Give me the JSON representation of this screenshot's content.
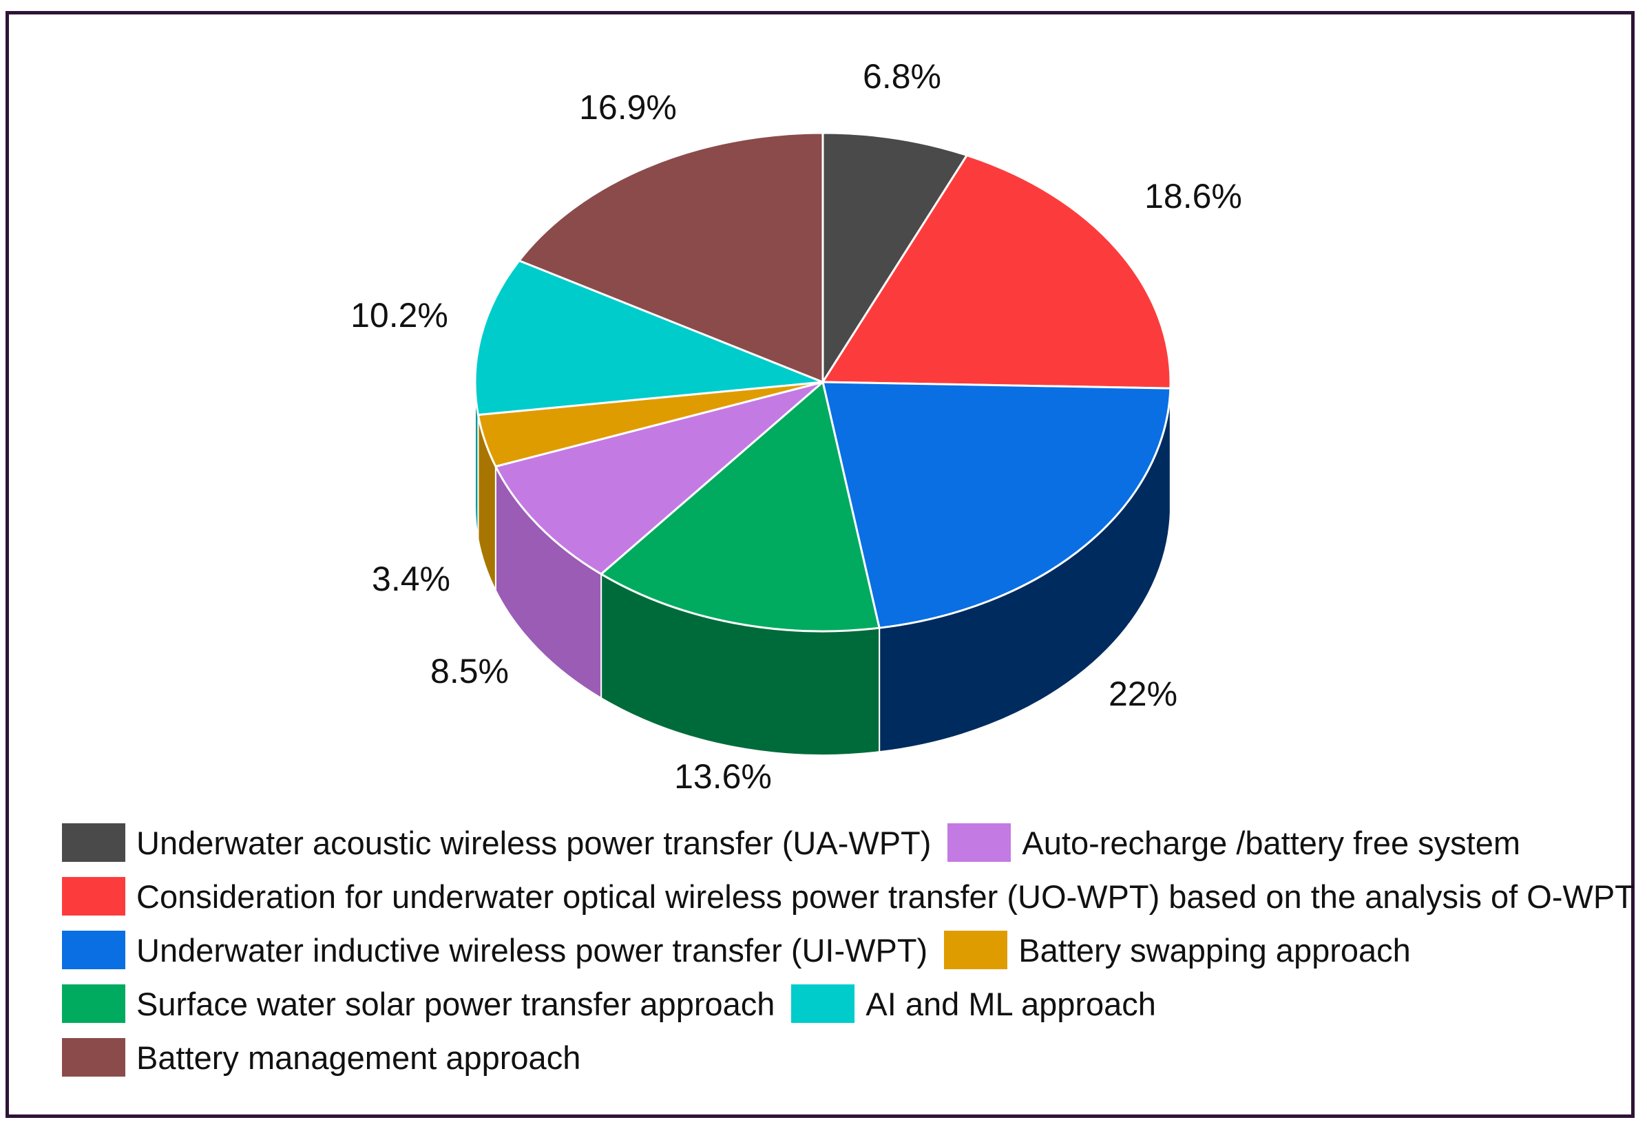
{
  "chart_data": {
    "type": "pie",
    "slices": [
      {
        "label": "Underwater acoustic wireless power transfer (UA-WPT)",
        "value": 6.8,
        "value_label": "6.8%",
        "color": "#4a4a4a",
        "side_color": "#2c2c2c"
      },
      {
        "label": "Consideration for underwater optical wireless power transfer (UO-WPT) based on the analysis of O-WPT",
        "value": 18.6,
        "value_label": "18.6%",
        "color": "#fc3c3c",
        "side_color": "#a12222"
      },
      {
        "label": "Underwater inductive wireless power transfer (UI-WPT)",
        "value": 22,
        "value_label": "22%",
        "color": "#0a6fe3",
        "side_color": "#002b5e"
      },
      {
        "label": "Surface water solar power transfer approach",
        "value": 13.6,
        "value_label": "13.6%",
        "color": "#00ab5f",
        "side_color": "#006b3a"
      },
      {
        "label": "Auto-recharge /battery free system",
        "value": 8.5,
        "value_label": "8.5%",
        "color": "#c47ae3",
        "side_color": "#9a5cb5"
      },
      {
        "label": "Battery swapping approach",
        "value": 3.4,
        "value_label": "3.4%",
        "color": "#df9c00",
        "side_color": "#a87500"
      },
      {
        "label": "AI and ML approach",
        "value": 10.2,
        "value_label": "10.2%",
        "color": "#00cccc",
        "side_color": "#009999"
      },
      {
        "label": "Battery management approach",
        "value": 16.9,
        "value_label": "16.9%",
        "color": "#8b4b4b",
        "side_color": "#5e3030"
      }
    ],
    "legend_placement": "bottom"
  },
  "legend_rows": [
    [
      0,
      4
    ],
    [
      1
    ],
    [
      2,
      5
    ],
    [
      3,
      6
    ],
    [
      7
    ]
  ]
}
